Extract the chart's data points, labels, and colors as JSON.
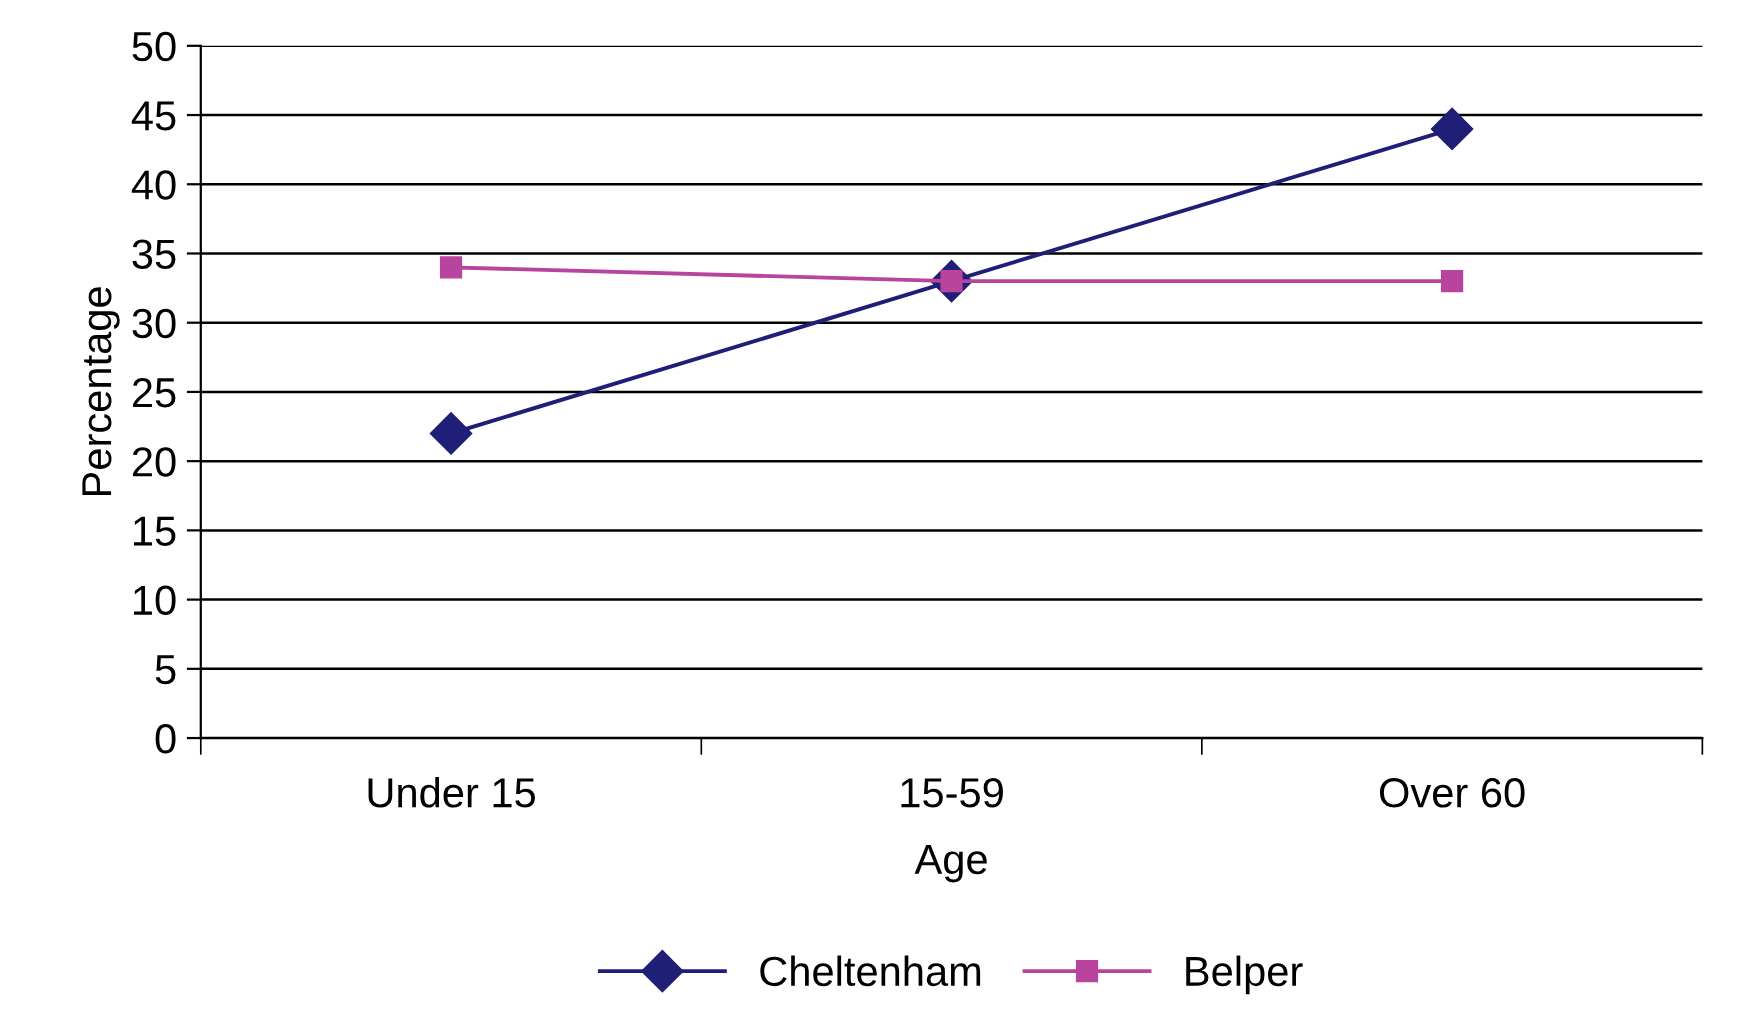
{
  "chart_data": {
    "type": "line",
    "xlabel": "Age",
    "ylabel": "Percentage",
    "categories": [
      "Under 15",
      "15-59",
      "Over 60"
    ],
    "series": [
      {
        "name": "Cheltenham",
        "color": "#1f1f78",
        "marker": "diamond",
        "values": [
          22,
          33,
          44
        ]
      },
      {
        "name": "Belper",
        "color": "#b8449e",
        "marker": "square",
        "values": [
          34,
          33,
          33
        ]
      }
    ],
    "ylim": [
      0,
      50
    ],
    "yticks": [
      0,
      5,
      10,
      15,
      20,
      25,
      30,
      35,
      40,
      45,
      50
    ],
    "grid": "y",
    "legend": "bottom",
    "line_style": "solid"
  }
}
